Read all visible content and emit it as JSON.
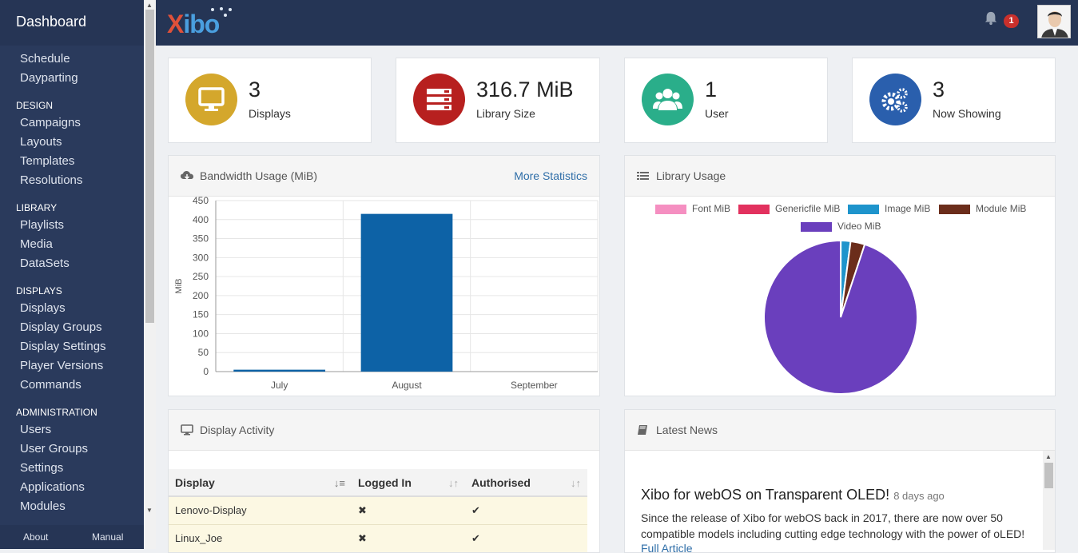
{
  "sidebar": {
    "title": "Dashboard",
    "sections": [
      {
        "heading": "",
        "items": [
          "Schedule",
          "Dayparting"
        ]
      },
      {
        "heading": "DESIGN",
        "items": [
          "Campaigns",
          "Layouts",
          "Templates",
          "Resolutions"
        ]
      },
      {
        "heading": "LIBRARY",
        "items": [
          "Playlists",
          "Media",
          "DataSets"
        ]
      },
      {
        "heading": "DISPLAYS",
        "items": [
          "Displays",
          "Display Groups",
          "Display Settings",
          "Player Versions",
          "Commands"
        ]
      },
      {
        "heading": "ADMINISTRATION",
        "items": [
          "Users",
          "User Groups",
          "Settings",
          "Applications",
          "Modules"
        ]
      }
    ],
    "footer": {
      "about": "About",
      "manual": "Manual"
    }
  },
  "topbar": {
    "logo_x": "X",
    "logo_rest": "ibo",
    "notification_count": "1"
  },
  "stats": [
    {
      "value": "3",
      "label": "Displays",
      "color": "#d4a72c",
      "icon": "monitor-icon"
    },
    {
      "value": "316.7 MiB",
      "label": "Library Size",
      "color": "#b7201f",
      "icon": "server-icon"
    },
    {
      "value": "1",
      "label": "User",
      "color": "#2aae8a",
      "icon": "users-icon"
    },
    {
      "value": "3",
      "label": "Now Showing",
      "color": "#2a5fad",
      "icon": "cogs-icon"
    }
  ],
  "bandwidth": {
    "title": "Bandwidth Usage (MiB)",
    "more_link": "More Statistics"
  },
  "library_usage": {
    "title": "Library Usage"
  },
  "display_activity": {
    "title": "Display Activity",
    "columns": [
      "Display",
      "Logged In",
      "Authorised"
    ],
    "rows": [
      {
        "display": "Lenovo-Display",
        "logged_in": "✖",
        "authorised": "✔"
      },
      {
        "display": "Linux_Joe",
        "logged_in": "✖",
        "authorised": "✔"
      }
    ]
  },
  "news": {
    "title": "Latest News",
    "headline": "Xibo for webOS on Transparent OLED!",
    "age": "8 days ago",
    "body": "Since the release of Xibo for webOS back in 2017, there are now over 50 compatible models including cutting edge technology with the power of oLED!",
    "link": "Full Article"
  },
  "chart_data": [
    {
      "type": "bar",
      "categories": [
        "July",
        "August",
        "September"
      ],
      "values": [
        5,
        415,
        0
      ],
      "ylabel": "MiB",
      "ylim": [
        0,
        450
      ],
      "yticks": [
        0,
        50,
        100,
        150,
        200,
        250,
        300,
        350,
        400,
        450
      ],
      "color": "#0d62a6",
      "grid": true
    },
    {
      "type": "pie",
      "labels": [
        "Font MiB",
        "Genericfile MiB",
        "Image MiB",
        "Module MiB",
        "Video MiB"
      ],
      "values": [
        0.05,
        0.05,
        6.5,
        9.5,
        300.6
      ],
      "colors": [
        "#f58fc1",
        "#e2315e",
        "#1e94cc",
        "#6b2d1b",
        "#6a3fbd"
      ],
      "legend": "top"
    }
  ]
}
